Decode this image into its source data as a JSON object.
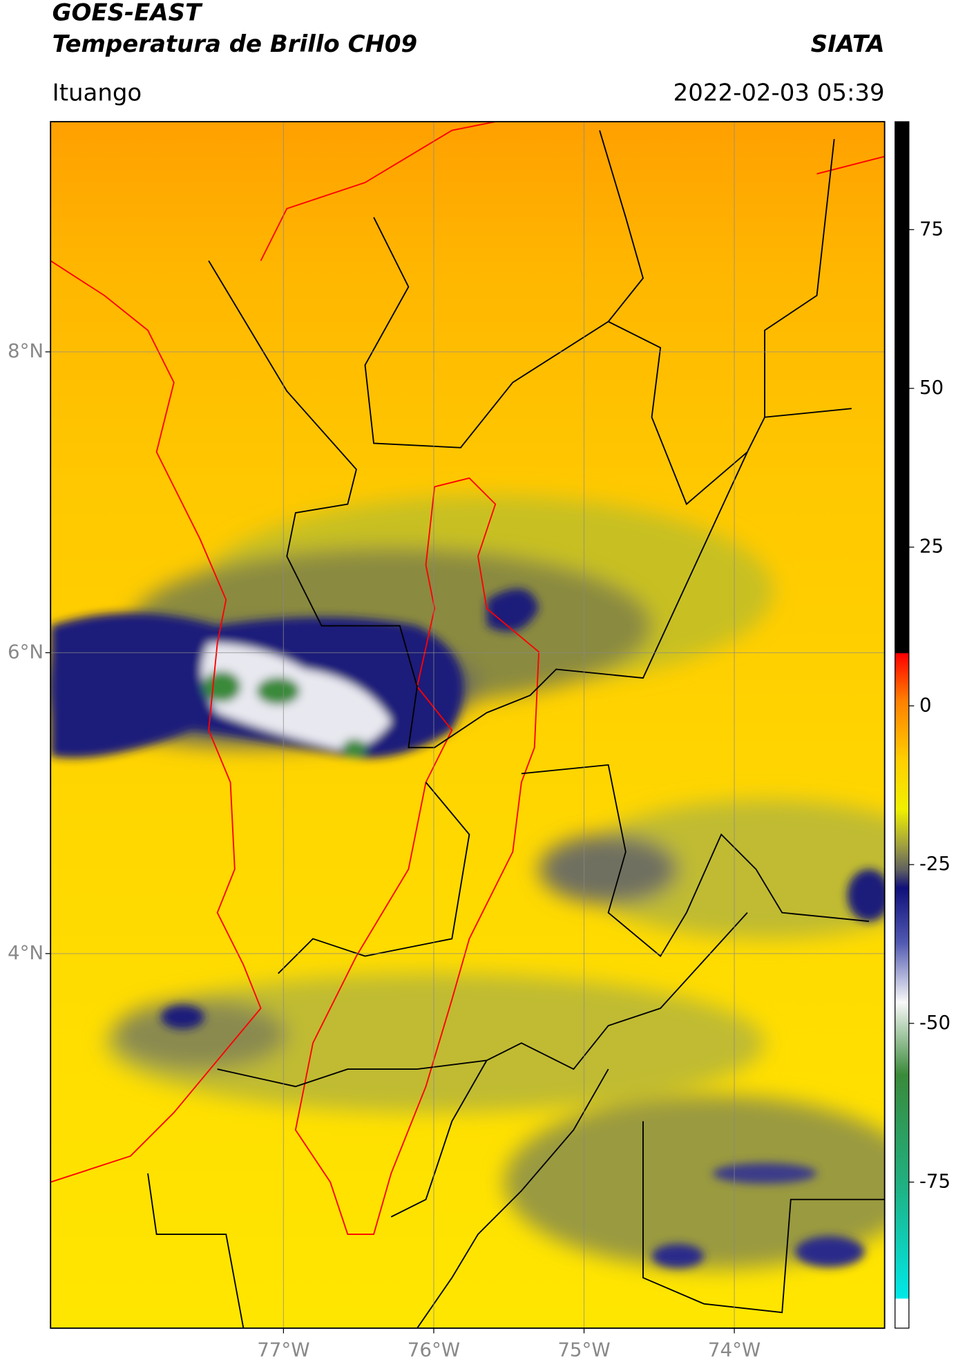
{
  "chart_data": {
    "type": "map",
    "title": "GOES-EAST",
    "subtitle": "Temperatura de Brillo CH09",
    "source": "SIATA",
    "location": "Ituango",
    "datetime": "2022-02-03 05:39",
    "xlim": [
      -78.55,
      -73.0
    ],
    "ylim": [
      1.51,
      9.53
    ],
    "xticks": [
      {
        "value": -77,
        "label": "77°W"
      },
      {
        "value": -76,
        "label": "76°W"
      },
      {
        "value": -75,
        "label": "75°W"
      },
      {
        "value": -74,
        "label": "74°W"
      }
    ],
    "yticks": [
      {
        "value": 8,
        "label": "8°N"
      },
      {
        "value": 6,
        "label": "6°N"
      },
      {
        "value": 4,
        "label": "4°N"
      }
    ],
    "colorbar_lim": [
      -98,
      92
    ],
    "colorbar_ticks": [
      75,
      50,
      25,
      0,
      -25,
      -50,
      -75
    ],
    "grid": true
  }
}
